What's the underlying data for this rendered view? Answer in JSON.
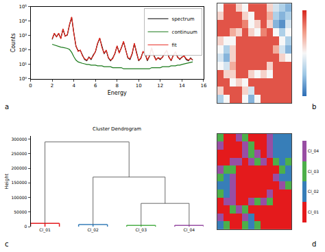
{
  "chart_data": [
    {
      "type": "line",
      "annotations": [
        "a"
      ],
      "xlabel": "Energy",
      "ylabel": "Counts",
      "log": "y",
      "legend": "upper right",
      "grid": false,
      "x": [
        2,
        2.2,
        2.4,
        2.6,
        2.8,
        3,
        3.2,
        3.4,
        3.6,
        3.8,
        4,
        4.2,
        4.4,
        4.6,
        4.8,
        5,
        5.2,
        5.4,
        5.6,
        5.8,
        6,
        6.2,
        6.4,
        6.6,
        6.8,
        7,
        7.2,
        7.4,
        7.6,
        7.8,
        8,
        8.2,
        8.4,
        8.6,
        8.8,
        9,
        9.2,
        9.4,
        9.6,
        9.8,
        10,
        10.2,
        10.4,
        10.6,
        10.8,
        11,
        11.2,
        11.4,
        11.6,
        11.8,
        12,
        12.2,
        12.4,
        12.6,
        12.8,
        13,
        13.2,
        13.4,
        13.6,
        13.8,
        14,
        14.2,
        14.4,
        14.6,
        14.8,
        15
      ],
      "xlim": [
        0,
        16
      ],
      "xticks": [
        0,
        2,
        4,
        6,
        8,
        10,
        12,
        14,
        16
      ],
      "ylim": [
        1,
        100000
      ],
      "yticks": [
        {
          "value": 1,
          "label": "10⁰"
        },
        {
          "value": 10,
          "label": "10¹"
        },
        {
          "value": 100,
          "label": "10²"
        },
        {
          "value": 1000,
          "label": "10³"
        },
        {
          "value": 10000,
          "label": "10⁴"
        },
        {
          "value": 100000,
          "label": "10⁵"
        }
      ],
      "series": [
        {
          "name": "spectrum",
          "color": "#000000",
          "line_style": "solid",
          "values": [
            550,
            1400,
            850,
            1400,
            650,
            2800,
            950,
            1100,
            5500,
            19000,
            1600,
            180,
            90,
            95,
            45,
            22,
            18,
            33,
            22,
            45,
            75,
            280,
            650,
            160,
            55,
            95,
            28,
            18,
            28,
            55,
            190,
            65,
            140,
            380,
            110,
            28,
            22,
            55,
            280,
            65,
            18,
            28,
            75,
            55,
            18,
            38,
            140,
            45,
            22,
            28,
            22,
            33,
            55,
            95,
            33,
            18,
            45,
            75,
            33,
            22,
            33,
            38,
            22,
            18,
            28,
            20
          ]
        },
        {
          "name": "continuum",
          "color": "#1a7a1a",
          "line_style": "solid",
          "values": [
            250,
            220,
            200,
            180,
            160,
            150,
            140,
            130,
            110,
            70,
            35,
            20,
            15,
            13,
            12,
            11,
            10,
            10,
            9,
            9,
            9,
            8,
            8,
            8,
            7,
            7,
            7,
            7,
            6,
            6,
            6,
            6,
            6,
            5,
            5,
            5,
            5,
            5,
            5,
            5,
            5,
            5,
            5,
            5,
            5,
            5,
            6,
            6,
            6,
            6,
            6,
            7,
            7,
            7,
            7,
            8,
            8,
            8,
            9,
            9,
            10,
            11,
            12,
            13,
            14,
            15
          ]
        },
        {
          "name": "fit",
          "color": "#e8261c",
          "line_style": "solid",
          "values": [
            600,
            1500,
            800,
            1500,
            600,
            3000,
            900,
            1200,
            6000,
            20000,
            1500,
            200,
            80,
            100,
            40,
            25,
            20,
            30,
            25,
            40,
            80,
            300,
            700,
            150,
            60,
            100,
            30,
            20,
            25,
            60,
            200,
            60,
            150,
            400,
            100,
            30,
            25,
            60,
            300,
            60,
            20,
            25,
            80,
            60,
            20,
            40,
            150,
            40,
            20,
            30,
            25,
            30,
            60,
            100,
            30,
            20,
            40,
            80,
            30,
            25,
            30,
            40,
            25,
            20,
            25,
            22
          ]
        }
      ]
    },
    {
      "type": "heatmap",
      "annotations": [
        "b"
      ],
      "tick_labels": false,
      "zlim": [
        0,
        1
      ],
      "cells": [
        [
          0.5,
          0.9,
          0.9,
          0.6,
          0.5,
          0.9,
          0.9,
          0.9,
          0.6,
          0.4,
          0.3,
          0.2
        ],
        [
          0.6,
          0.9,
          0.9,
          0.9,
          0.6,
          0.5,
          0.9,
          0.9,
          0.7,
          0.3,
          0.2,
          0.3
        ],
        [
          0.9,
          0.9,
          0.9,
          0.9,
          0.8,
          0.5,
          0.6,
          0.9,
          0.6,
          0.2,
          0.1,
          0.4
        ],
        [
          0.9,
          0.9,
          0.7,
          0.6,
          0.9,
          0.6,
          0.5,
          0.8,
          0.9,
          0.5,
          0.3,
          0.5
        ],
        [
          0.6,
          0.5,
          0.5,
          0.9,
          0.9,
          0.9,
          0.9,
          0.9,
          0.9,
          0.9,
          0.5,
          0.3
        ],
        [
          0.5,
          0.3,
          0.6,
          0.9,
          0.9,
          0.9,
          0.9,
          0.9,
          0.9,
          0.7,
          0.4,
          0.2
        ],
        [
          0.4,
          0.2,
          0.6,
          0.9,
          0.9,
          0.9,
          0.9,
          0.9,
          0.9,
          0.9,
          0.6,
          0.5
        ],
        [
          0.5,
          0.4,
          0.7,
          0.9,
          0.9,
          0.9,
          0.9,
          0.9,
          0.6,
          0.9,
          0.9,
          0.9
        ],
        [
          0.9,
          0.6,
          0.6,
          0.9,
          0.9,
          0.6,
          0.5,
          0.6,
          0.5,
          0.9,
          0.9,
          0.9
        ],
        [
          0.9,
          0.9,
          0.5,
          0.6,
          0.5,
          0.9,
          0.9,
          0.9,
          0.9,
          0.9,
          0.9,
          0.9
        ],
        [
          0.6,
          0.9,
          0.9,
          0.9,
          0.6,
          0.4,
          0.9,
          0.9,
          0.9,
          0.9,
          0.9,
          0.9
        ],
        [
          0.3,
          0.5,
          0.9,
          0.9,
          0.5,
          0.2,
          0.5,
          0.9,
          0.9,
          0.9,
          0.9,
          0.9
        ]
      ]
    },
    {
      "type": "dendrogram",
      "annotations": [
        "c"
      ],
      "title": "Cluster Dendrogram",
      "ylabel": "Height",
      "grid": false,
      "categories": [
        "Cl_01",
        "Cl_02",
        "Cl_03",
        "Cl_04"
      ],
      "colors": [
        "#e41a1c",
        "#377eb8",
        "#4daf4a",
        "#984ea3"
      ],
      "leaf_heights": [
        12000,
        8000,
        5000,
        5000
      ],
      "merges": [
        {
          "left": 2,
          "right": 3,
          "height": 80000
        },
        {
          "left": 1,
          "right": 4,
          "height": 170000
        },
        {
          "left": 0,
          "right": 5,
          "height": 290000
        }
      ],
      "ylim": [
        0,
        310000
      ],
      "yticks": [
        0,
        50000,
        100000,
        150000,
        200000,
        250000,
        300000
      ]
    },
    {
      "type": "heatmap",
      "annotations": [
        "d"
      ],
      "tick_labels": false,
      "categories": [
        "Cl_01",
        "Cl_02",
        "Cl_03",
        "Cl_04"
      ],
      "colors": [
        "#e41a1c",
        "#377eb8",
        "#4daf4a",
        "#984ea3"
      ],
      "cells": [
        [
          2,
          0,
          0,
          3,
          2,
          0,
          0,
          0,
          3,
          1,
          1,
          1
        ],
        [
          3,
          0,
          0,
          0,
          3,
          2,
          0,
          0,
          3,
          1,
          1,
          1
        ],
        [
          0,
          0,
          0,
          0,
          3,
          2,
          3,
          0,
          3,
          1,
          1,
          1
        ],
        [
          0,
          0,
          3,
          3,
          0,
          3,
          2,
          3,
          0,
          2,
          1,
          2
        ],
        [
          3,
          2,
          2,
          0,
          0,
          0,
          0,
          0,
          0,
          0,
          2,
          1
        ],
        [
          2,
          1,
          3,
          0,
          0,
          0,
          0,
          0,
          0,
          3,
          1,
          1
        ],
        [
          1,
          1,
          3,
          0,
          0,
          0,
          0,
          0,
          0,
          0,
          3,
          2
        ],
        [
          2,
          1,
          3,
          0,
          0,
          0,
          0,
          0,
          3,
          0,
          0,
          0
        ],
        [
          0,
          3,
          3,
          0,
          0,
          3,
          2,
          3,
          2,
          0,
          0,
          0
        ],
        [
          0,
          0,
          2,
          3,
          2,
          0,
          0,
          0,
          0,
          0,
          0,
          0
        ],
        [
          3,
          0,
          0,
          0,
          3,
          1,
          0,
          0,
          0,
          0,
          0,
          0
        ],
        [
          1,
          2,
          0,
          0,
          2,
          1,
          2,
          0,
          0,
          0,
          0,
          0
        ]
      ]
    }
  ]
}
